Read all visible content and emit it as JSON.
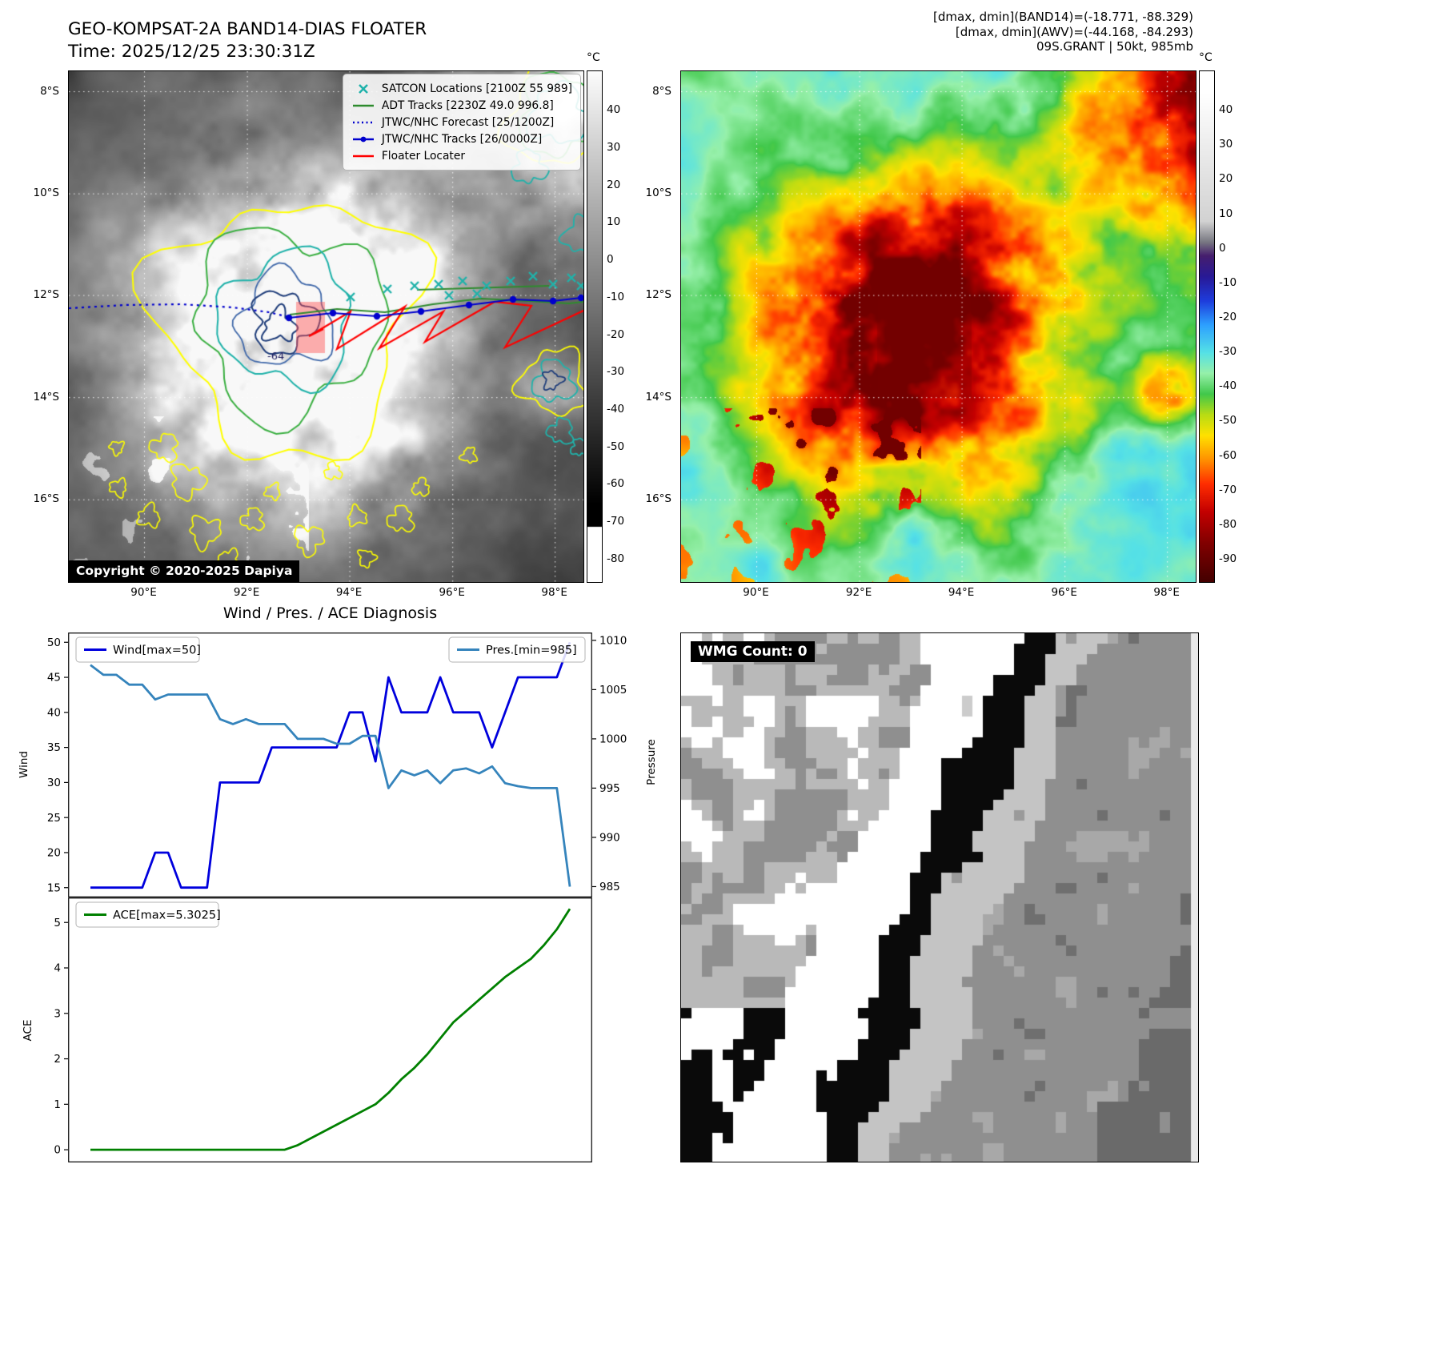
{
  "panel_ir": {
    "title": "GEO-KOMPSAT-2A BAND14-DIAS FLOATER",
    "time_label": "Time: 2025/12/25 23:30:31Z",
    "copyright": "Copyright © 2020-2025 Dapiya",
    "contour_label": "-64",
    "colorbar_unit": "°C",
    "colorbar_ticks": [
      40,
      30,
      20,
      10,
      0,
      -10,
      -20,
      -30,
      -40,
      -50,
      -60,
      -70,
      -80
    ],
    "lat_ticks": [
      "8°S",
      "10°S",
      "12°S",
      "14°S",
      "16°S"
    ],
    "lon_ticks": [
      "90°E",
      "92°E",
      "94°E",
      "96°E",
      "98°E"
    ],
    "legend": [
      {
        "label": "SATCON Locations [2100Z 55 989]",
        "marker": "x",
        "color": "#20b2aa"
      },
      {
        "label": "ADT Tracks [2230Z 49.0 996.8]",
        "marker": "line",
        "color": "#2e8b2e"
      },
      {
        "label": "JTWC/NHC Forecast [25/1200Z]",
        "marker": "dotted",
        "color": "#0000cd"
      },
      {
        "label": "JTWC/NHC Tracks [26/0000Z]",
        "marker": "line-dot",
        "color": "#0000cd"
      },
      {
        "label": "Floater Locater",
        "marker": "line",
        "color": "#ff0000"
      }
    ]
  },
  "panel_awv": {
    "header_lines": [
      "[dmax, dmin](BAND14)=(-18.771, -88.329)",
      "[dmax, dmin](AWV)=(-44.168, -84.293)",
      "09S.GRANT | 50kt, 985mb"
    ],
    "colorbar_unit": "°C",
    "colorbar_ticks": [
      40,
      30,
      20,
      10,
      0,
      -10,
      -20,
      -30,
      -40,
      -50,
      -60,
      -70,
      -80,
      -90
    ],
    "lat_ticks": [
      "8°S",
      "10°S",
      "12°S",
      "14°S",
      "16°S"
    ],
    "lon_ticks": [
      "90°E",
      "92°E",
      "94°E",
      "96°E",
      "98°E"
    ]
  },
  "wmg": {
    "label": "WMG Count: 0"
  },
  "chart_data": [
    {
      "type": "line",
      "title": "Wind / Pres. / ACE Diagnosis",
      "ylabel": "Wind",
      "ylabel_right": "Pressure",
      "yticks_left": [
        15,
        20,
        25,
        30,
        35,
        40,
        45,
        50
      ],
      "yticks_right": [
        985,
        990,
        995,
        1000,
        1005,
        1010
      ],
      "ylim_left": [
        13.6,
        51.4
      ],
      "ylim_right": [
        983.9,
        1010.8
      ],
      "legend_position": "top-left / top-right",
      "grid": false,
      "series": [
        {
          "name": "Wind[max=50]",
          "axis": "left",
          "color": "#0000dd",
          "values": [
            15,
            15,
            15,
            15,
            15,
            20,
            20,
            15,
            15,
            15,
            30,
            30,
            30,
            30,
            35,
            35,
            35,
            35,
            35,
            35,
            40,
            40,
            33,
            45,
            40,
            40,
            40,
            45,
            40,
            40,
            40,
            35,
            40,
            45,
            45,
            45,
            45,
            50
          ]
        },
        {
          "name": "Pres.[min=985]",
          "axis": "right",
          "color": "#3584bc",
          "values": [
            1007.5,
            1006.5,
            1006.5,
            1005.5,
            1005.5,
            1004,
            1004.5,
            1004.5,
            1004.5,
            1004.5,
            1002,
            1001.5,
            1002,
            1001.5,
            1001.5,
            1001.5,
            1000,
            1000,
            1000,
            999.5,
            999.5,
            1000.3,
            1000.3,
            995,
            996.8,
            996.3,
            996.8,
            995.5,
            996.8,
            997,
            996.5,
            997.2,
            995.5,
            995.2,
            995,
            995,
            995,
            985
          ]
        }
      ]
    },
    {
      "type": "line",
      "ylabel": "ACE",
      "yticks_left": [
        0,
        1,
        2,
        3,
        4,
        5
      ],
      "ylim_left": [
        -0.28,
        5.55
      ],
      "legend_position": "top-left",
      "grid": false,
      "series": [
        {
          "name": "ACE[max=5.3025]",
          "axis": "left",
          "color": "#008000",
          "values": [
            0,
            0,
            0,
            0,
            0,
            0,
            0,
            0,
            0,
            0,
            0,
            0,
            0,
            0,
            0,
            0,
            0.1,
            0.25,
            0.4,
            0.55,
            0.7,
            0.85,
            1.0,
            1.25,
            1.55,
            1.8,
            2.1,
            2.45,
            2.8,
            3.05,
            3.3,
            3.55,
            3.8,
            4.0,
            4.2,
            4.5,
            4.85,
            5.3
          ]
        }
      ]
    }
  ]
}
